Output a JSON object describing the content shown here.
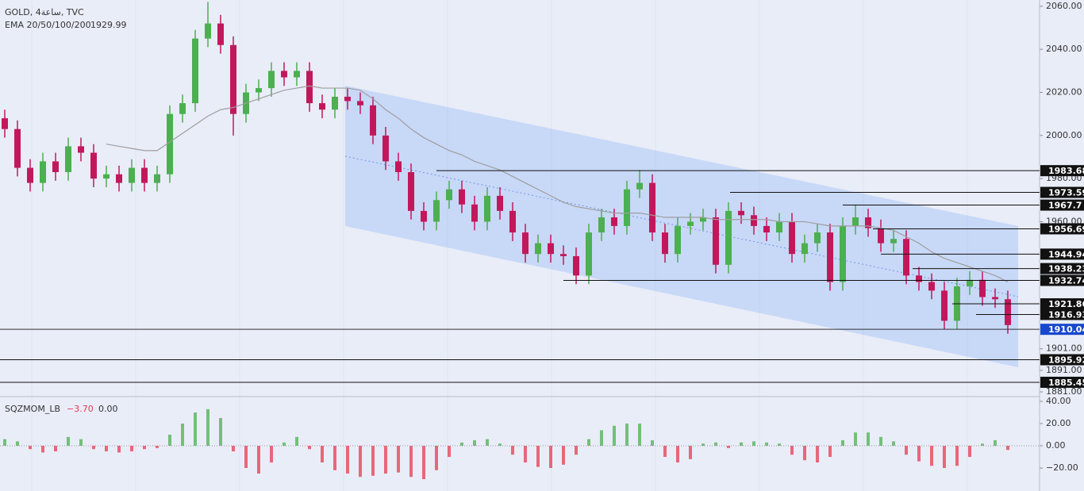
{
  "chart_data": [
    {
      "type": "candlestick",
      "title": "GOLD, 4ساعة, TVC",
      "indicator": "EMA 20/50/100/200",
      "indicator_value": 1929.99,
      "ylim": [
        1878.8,
        2062.9
      ],
      "yticks": [
        {
          "value": 2060,
          "label": "2060.00"
        },
        {
          "value": 2040,
          "label": "2040.00"
        },
        {
          "value": 2020,
          "label": "2020.00"
        },
        {
          "value": 2000,
          "label": "2000.00"
        },
        {
          "value": 1980,
          "label": "1980.00"
        },
        {
          "value": 1960,
          "label": "1960.00"
        },
        {
          "value": 1901,
          "label": "1901.00"
        },
        {
          "value": 1891,
          "label": "1891.00"
        },
        {
          "value": 1881,
          "label": "1881.00"
        }
      ],
      "up_color": "#4caf50",
      "down_color": "#c2185b",
      "open": [
        2008,
        2003,
        1985,
        1978,
        1988,
        1983,
        1995,
        1992,
        1980,
        1982,
        1978,
        1985,
        1978,
        1982,
        2010,
        2015,
        2045,
        2052,
        2042,
        2010,
        2020,
        2022,
        2030,
        2027,
        2030,
        2015,
        2012,
        2018,
        2016,
        2014,
        2000,
        1988,
        1983,
        1965,
        1960,
        1970,
        1975,
        1968,
        1960,
        1972,
        1965,
        1955,
        1945,
        1950,
        1945,
        1944,
        1935,
        1955,
        1962,
        1958,
        1975,
        1978,
        1955,
        1945,
        1958,
        1960,
        1962,
        1940,
        1965,
        1963,
        1958,
        1955,
        1960,
        1945,
        1950,
        1955,
        1932,
        1958,
        1962,
        1957,
        1950,
        1952,
        1935,
        1932,
        1928,
        1914,
        1930,
        1933,
        1925,
        1924
      ],
      "high": [
        2012,
        2007,
        1989,
        1992,
        1992,
        1999,
        1999,
        1996,
        1986,
        1986,
        1989,
        1989,
        1986,
        2014,
        2019,
        2049,
        2062,
        2056,
        2046,
        2024,
        2026,
        2034,
        2034,
        2034,
        2034,
        2019,
        2022,
        2022,
        2020,
        2018,
        2004,
        1992,
        1987,
        1969,
        1974,
        1979,
        1979,
        1972,
        1976,
        1976,
        1969,
        1959,
        1954,
        1954,
        1949,
        1948,
        1959,
        1966,
        1966,
        1979,
        1984,
        1982,
        1959,
        1962,
        1964,
        1966,
        1966,
        1969,
        1969,
        1967,
        1962,
        1964,
        1964,
        1954,
        1959,
        1959,
        1962,
        1968,
        1966,
        1961,
        1956,
        1956,
        1939,
        1936,
        1932,
        1934,
        1937,
        1937,
        1929,
        1928
      ],
      "low": [
        1999,
        1981,
        1974,
        1974,
        1979,
        1979,
        1988,
        1976,
        1976,
        1974,
        1974,
        1974,
        1974,
        1978,
        2006,
        2011,
        2041,
        2038,
        2000,
        2006,
        2016,
        2018,
        2023,
        2023,
        2011,
        2008,
        2008,
        2012,
        2010,
        1996,
        1984,
        1979,
        1961,
        1956,
        1956,
        1966,
        1964,
        1956,
        1956,
        1961,
        1951,
        1941,
        1941,
        1941,
        1940,
        1931,
        1931,
        1951,
        1954,
        1954,
        1971,
        1951,
        1941,
        1941,
        1954,
        1956,
        1936,
        1936,
        1959,
        1954,
        1951,
        1951,
        1941,
        1941,
        1946,
        1928,
        1928,
        1954,
        1953,
        1946,
        1946,
        1931,
        1928,
        1924,
        1910,
        1910,
        1926,
        1921,
        1920,
        1908
      ],
      "close": [
        2003,
        1985,
        1978,
        1988,
        1983,
        1995,
        1992,
        1980,
        1982,
        1978,
        1985,
        1978,
        1982,
        2010,
        2015,
        2045,
        2052,
        2042,
        2010,
        2020,
        2022,
        2030,
        2027,
        2030,
        2015,
        2012,
        2018,
        2016,
        2014,
        2000,
        1988,
        1983,
        1965,
        1960,
        1970,
        1975,
        1968,
        1960,
        1972,
        1965,
        1955,
        1945,
        1950,
        1945,
        1944,
        1935,
        1955,
        1962,
        1958,
        1975,
        1978,
        1955,
        1945,
        1958,
        1960,
        1962,
        1940,
        1965,
        1963,
        1958,
        1955,
        1960,
        1945,
        1950,
        1955,
        1932,
        1958,
        1962,
        1957,
        1950,
        1952,
        1935,
        1932,
        1928,
        1914,
        1930,
        1933,
        1925,
        1924,
        1912
      ],
      "ema": [
        null,
        null,
        null,
        null,
        null,
        null,
        null,
        null,
        1996,
        1995,
        1994,
        1993,
        1993,
        1997,
        2001,
        2005,
        2009,
        2012,
        2013,
        2015,
        2017,
        2019,
        2021,
        2022,
        2023,
        2022,
        2022,
        2022,
        2021,
        2017,
        2012,
        2008,
        2003,
        1999,
        1996,
        1993,
        1991,
        1988,
        1986,
        1984,
        1981,
        1978,
        1975,
        1972,
        1969,
        1967,
        1966,
        1965,
        1964,
        1964,
        1964,
        1963,
        1962,
        1962,
        1962,
        1962,
        1961,
        1961,
        1961,
        1961,
        1961,
        1960,
        1960,
        1960,
        1959,
        1958,
        1958,
        1958,
        1958,
        1957,
        1956,
        1953,
        1950,
        1946,
        1943,
        1941,
        1939,
        1937,
        1935,
        1932
      ],
      "ema_color": "#9e9e9e",
      "levels": [
        1983.68,
        1973.59,
        1967.7,
        1956.69,
        1944.94,
        1938.23,
        1932.74,
        1921.86,
        1916.93,
        1895.92,
        1885.45
      ],
      "current_price": 1910.04,
      "current_color": "#1848cc"
    },
    {
      "type": "bar",
      "title": "SQZMOM_LB",
      "legend_values": [
        {
          "value": -3.7,
          "label": "−3.70"
        },
        {
          "value": 0,
          "label": "0.00"
        }
      ],
      "ylim": [
        -40.7,
        44.3
      ],
      "yticks": [
        {
          "value": 40,
          "label": "40.00"
        },
        {
          "value": 20,
          "label": "20.00"
        },
        {
          "value": 0,
          "label": "0.00"
        },
        {
          "value": -20,
          "label": "−20.00"
        }
      ],
      "up_color": "#4caf50",
      "down_color": "#e53950",
      "values": [
        6,
        4,
        -3,
        -6,
        -5,
        8,
        6,
        -3,
        -5,
        -6,
        -5,
        -3,
        -2,
        10,
        20,
        30,
        33,
        25,
        -5,
        -20,
        -25,
        -15,
        3,
        8,
        -3,
        -15,
        -22,
        -25,
        -28,
        -27,
        -25,
        -24,
        -28,
        -30,
        -22,
        -10,
        3,
        5,
        6,
        2,
        -8,
        -15,
        -19,
        -20,
        -17,
        -8,
        6,
        14,
        18,
        20,
        20,
        5,
        -10,
        -15,
        -12,
        2,
        3,
        -2,
        3,
        4,
        3,
        2,
        -8,
        -13,
        -15,
        -10,
        5,
        12,
        12,
        8,
        4,
        -8,
        -14,
        -18,
        -20,
        -18,
        -10,
        2,
        5,
        -3.7
      ]
    }
  ]
}
